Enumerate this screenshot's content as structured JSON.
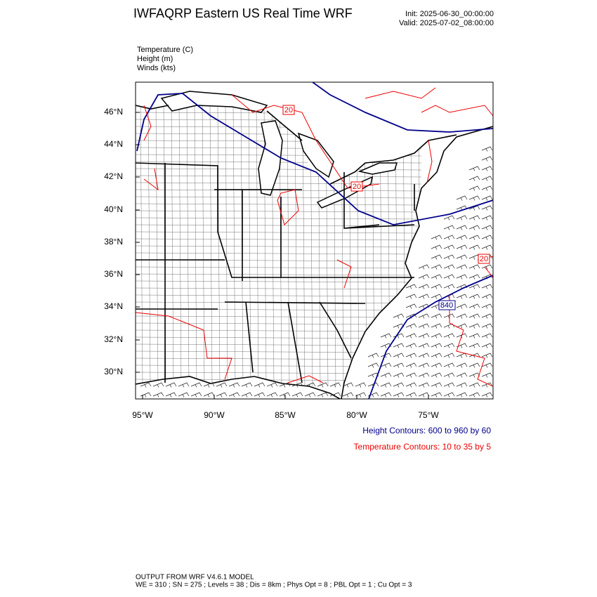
{
  "header": {
    "title": "IWFAQRP Eastern US Real Time WRF",
    "init": "Init: 2025-06-30_00:00:00",
    "valid": "Valid: 2025-07-02_08:00:00"
  },
  "fields": [
    "Temperature   (C)",
    "Height   (m)",
    "Winds   (kts)"
  ],
  "map": {
    "lat_labels": [
      "46°N",
      "44°N",
      "42°N",
      "40°N",
      "38°N",
      "36°N",
      "34°N",
      "32°N",
      "30°N"
    ],
    "lon_labels": [
      "95°W",
      "90°W",
      "85°W",
      "80°W",
      "75°W"
    ],
    "contour_labels": [
      "20",
      "20",
      "20",
      "840"
    ]
  },
  "contour_info": {
    "height": "Height Contours: 600 to 960 by 60",
    "temperature": "Temperature Contours: 10 to 35 by 5"
  },
  "footer": {
    "model": "OUTPUT FROM WRF V4.6.1 MODEL",
    "settings": "WE = 310 ; SN = 275 ; Levels = 38 ; Dis = 8km ; Phys Opt = 8 ; PBL Opt = 1 ; Cu Opt = 3"
  }
}
